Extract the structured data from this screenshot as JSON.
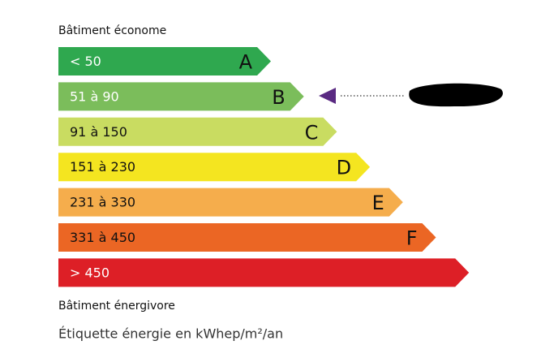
{
  "top_label": "Bâtiment économe",
  "classes": [
    {
      "range": "< 50",
      "letter": "A",
      "color": "#2fa84f"
    },
    {
      "range": "51 à 90",
      "letter": "B",
      "color": "#7bbd5b"
    },
    {
      "range": "91 à 150",
      "letter": "C",
      "color": "#c9dc61"
    },
    {
      "range": "151 à 230",
      "letter": "D",
      "color": "#f4e520"
    },
    {
      "range": "231 à 330",
      "letter": "E",
      "color": "#f5ad4c"
    },
    {
      "range": "331 à 450",
      "letter": "F",
      "color": "#eb6624"
    },
    {
      "range": "> 450",
      "color": "#dd1f26"
    }
  ],
  "bottom_label": "Bâtiment énergivore",
  "caption": "Étiquette énergie en kWhep/m²/an"
}
